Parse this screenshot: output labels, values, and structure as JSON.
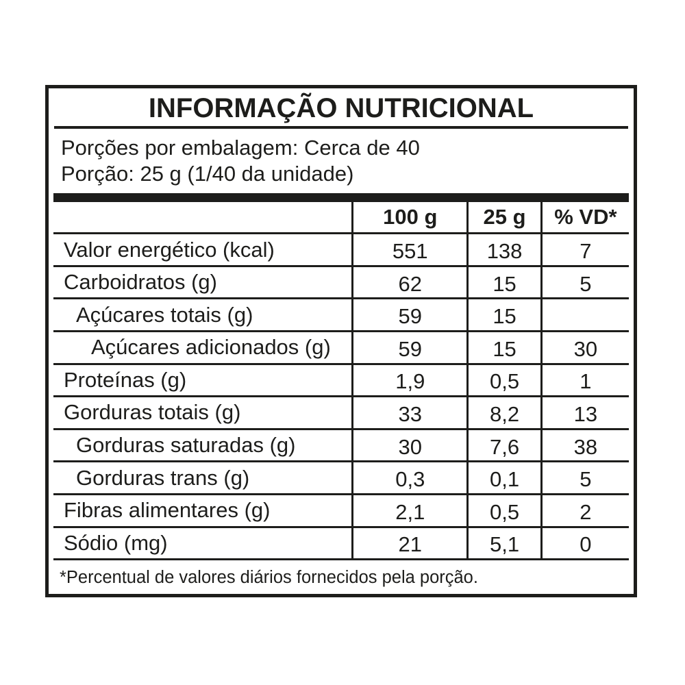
{
  "colors": {
    "text": "#1d1d1b",
    "border": "#1d1d1b",
    "background": "#ffffff"
  },
  "label": {
    "title": "INFORMAÇÃO NUTRICIONAL",
    "servings_line1": "Porções por embalagem: Cerca de 40",
    "servings_line2": "Porção: 25 g (1/40 da unidade)",
    "columns": [
      "100 g",
      "25 g",
      "% VD*"
    ],
    "rows": [
      {
        "name": "Valor energético (kcal)",
        "indent": 0,
        "per100": "551",
        "per25": "138",
        "vd": "7"
      },
      {
        "name": "Carboidratos (g)",
        "indent": 0,
        "per100": "62",
        "per25": "15",
        "vd": "5"
      },
      {
        "name": "Açúcares totais (g)",
        "indent": 1,
        "per100": "59",
        "per25": "15",
        "vd": ""
      },
      {
        "name": "Açúcares adicionados (g)",
        "indent": 2,
        "per100": "59",
        "per25": "15",
        "vd": "30"
      },
      {
        "name": "Proteínas (g)",
        "indent": 0,
        "per100": "1,9",
        "per25": "0,5",
        "vd": "1"
      },
      {
        "name": "Gorduras totais (g)",
        "indent": 0,
        "per100": "33",
        "per25": "8,2",
        "vd": "13"
      },
      {
        "name": "Gorduras saturadas (g)",
        "indent": 1,
        "per100": "30",
        "per25": "7,6",
        "vd": "38"
      },
      {
        "name": "Gorduras trans (g)",
        "indent": 1,
        "per100": "0,3",
        "per25": "0,1",
        "vd": "5"
      },
      {
        "name": "Fibras alimentares (g)",
        "indent": 0,
        "per100": "2,1",
        "per25": "0,5",
        "vd": "2"
      },
      {
        "name": "Sódio (mg)",
        "indent": 0,
        "per100": "21",
        "per25": "5,1",
        "vd": "0"
      }
    ],
    "footnote": "*Percentual de valores diários fornecidos pela porção."
  }
}
